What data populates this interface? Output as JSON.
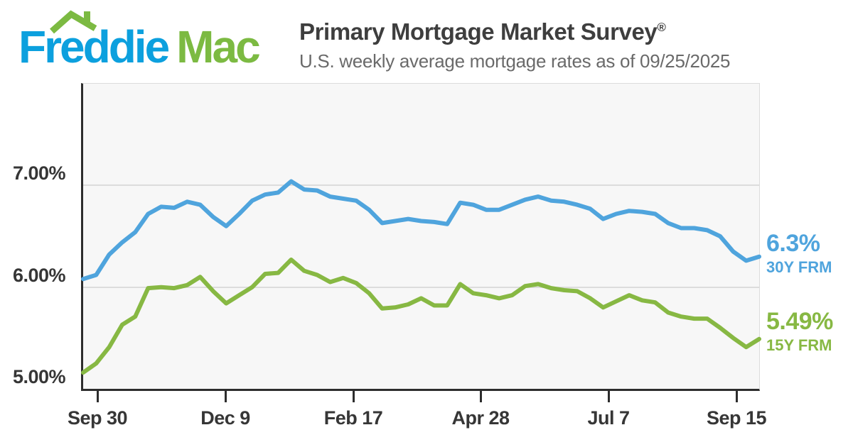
{
  "brand": {
    "word1": "Freddie",
    "word2": "Mac",
    "blue": "#0CA0DE",
    "green": "#7CBA42"
  },
  "header": {
    "title": "Primary Mortgage Market Survey",
    "registered": "®",
    "subtitle": "U.S. weekly average mortgage rates as of 09/25/2025"
  },
  "chart_data": {
    "type": "line",
    "title": "Primary Mortgage Market Survey",
    "xlabel": "",
    "ylabel": "",
    "ylim": [
      5.0,
      8.0
    ],
    "grid": true,
    "y_gridlines": [
      7.0,
      6.0
    ],
    "y_ticks": [
      {
        "label": "7.00%",
        "value": 7.0
      },
      {
        "label": "6.00%",
        "value": 6.0
      },
      {
        "label": "5.00%",
        "value": 5.0
      }
    ],
    "x_tick_labels": [
      "Sep 30",
      "Dec 9",
      "Feb 17",
      "Apr 28",
      "Jul 7",
      "Sep 15"
    ],
    "x_unit": "weekly",
    "legend_position": "right-of-line-end",
    "series": [
      {
        "name": "30Y FRM",
        "color": "#4FA4DD",
        "latest_label": "6.3%",
        "values": [
          6.08,
          6.12,
          6.32,
          6.44,
          6.54,
          6.72,
          6.79,
          6.78,
          6.84,
          6.81,
          6.69,
          6.6,
          6.72,
          6.85,
          6.91,
          6.93,
          7.04,
          6.96,
          6.95,
          6.89,
          6.87,
          6.85,
          6.76,
          6.63,
          6.65,
          6.67,
          6.65,
          6.64,
          6.62,
          6.83,
          6.81,
          6.76,
          6.76,
          6.81,
          6.86,
          6.89,
          6.85,
          6.84,
          6.81,
          6.77,
          6.67,
          6.72,
          6.75,
          6.74,
          6.72,
          6.63,
          6.58,
          6.58,
          6.56,
          6.5,
          6.35,
          6.26,
          6.3
        ]
      },
      {
        "name": "15Y FRM",
        "color": "#87B843",
        "latest_label": "5.49%",
        "values": [
          5.16,
          5.25,
          5.41,
          5.63,
          5.71,
          5.99,
          6.0,
          5.99,
          6.02,
          6.1,
          5.96,
          5.84,
          5.92,
          6.0,
          6.13,
          6.14,
          6.27,
          6.16,
          6.12,
          6.05,
          6.09,
          6.04,
          5.94,
          5.79,
          5.8,
          5.83,
          5.89,
          5.82,
          5.82,
          6.03,
          5.94,
          5.92,
          5.89,
          5.92,
          6.01,
          6.03,
          5.99,
          5.97,
          5.96,
          5.89,
          5.8,
          5.86,
          5.92,
          5.87,
          5.85,
          5.75,
          5.71,
          5.69,
          5.69,
          5.6,
          5.5,
          5.41,
          5.49
        ]
      }
    ]
  }
}
